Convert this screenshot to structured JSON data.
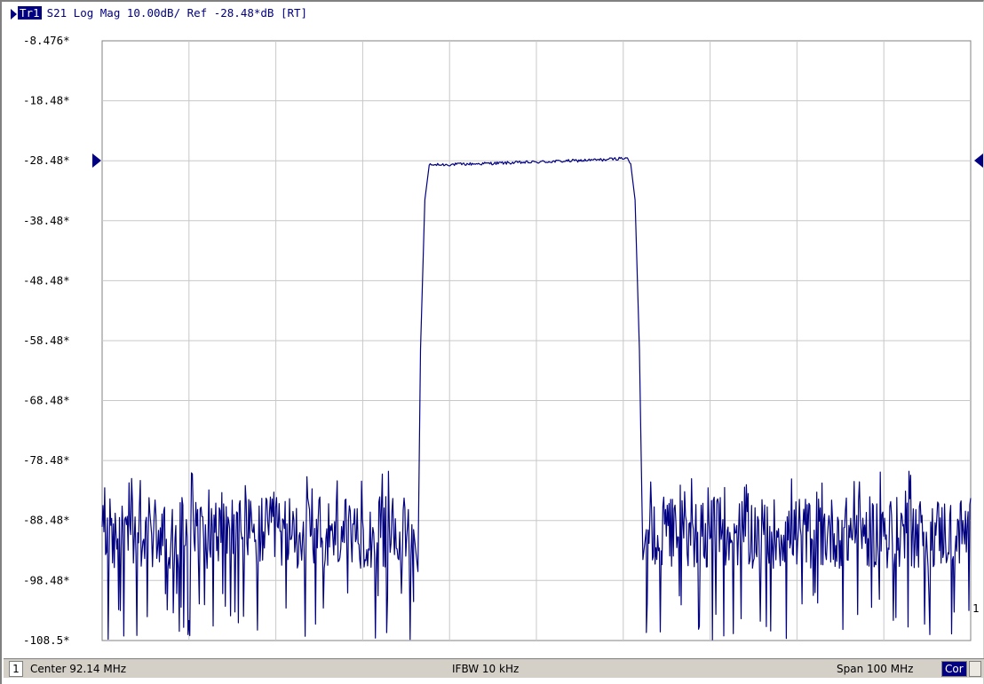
{
  "trace_header": {
    "badge": "Tr1",
    "text": "S21 Log Mag 10.00dB/ Ref -28.48*dB [RT]"
  },
  "colors": {
    "trace": "#000080",
    "grid": "#c8c8c8",
    "frame": "#808080",
    "statusbar": "#d4d0c8"
  },
  "chart_data": {
    "type": "line",
    "title": "S21 Log Mag 10.00dB/ Ref -28.48*dB [RT]",
    "xlabel": "",
    "ylabel": "",
    "x_units": "MHz",
    "center_mhz": 92.14,
    "span_mhz": 100,
    "xlim": [
      42.14,
      142.14
    ],
    "ylim": [
      -108.5,
      -8.476
    ],
    "grid": true,
    "ytick_labels": [
      "-8.476*",
      "-18.48*",
      "-28.48*",
      "-38.48*",
      "-48.48*",
      "-58.48*",
      "-68.48*",
      "-78.48*",
      "-88.48*",
      "-98.48*",
      "-108.5*"
    ],
    "ytick_values": [
      -8.476,
      -18.48,
      -28.48,
      -38.48,
      -48.48,
      -58.48,
      -68.48,
      -78.48,
      -88.48,
      -98.48,
      -108.5
    ],
    "reference_level": -28.48,
    "series": [
      {
        "points": [
          [
            42.14,
            -91.0
          ],
          [
            52.14,
            -90.0
          ],
          [
            62.14,
            -89.5
          ],
          [
            72.14,
            -90.0
          ],
          [
            78.0,
            -90.0
          ],
          [
            78.5,
            -97.0
          ],
          [
            78.8,
            -60.0
          ],
          [
            79.3,
            -35.0
          ],
          [
            79.8,
            -29.2
          ],
          [
            85.0,
            -29.0
          ],
          [
            92.14,
            -28.7
          ],
          [
            100.0,
            -28.3
          ],
          [
            102.5,
            -28.0
          ],
          [
            103.0,
            -29.0
          ],
          [
            103.5,
            -35.0
          ],
          [
            104.0,
            -60.0
          ],
          [
            104.4,
            -95.0
          ],
          [
            104.8,
            -90.0
          ],
          [
            112.14,
            -90.0
          ],
          [
            122.14,
            -91.0
          ],
          [
            132.14,
            -91.0
          ],
          [
            142.14,
            -92.0
          ]
        ]
      }
    ],
    "noise_floor": {
      "left_range_mhz": [
        42.14,
        78.0
      ],
      "right_range_mhz": [
        104.8,
        142.14
      ],
      "mean_db": -90.5,
      "min_db": -108.5,
      "max_db": -80.0
    },
    "marker_label": "1"
  },
  "statusbar": {
    "channel": "1",
    "center": "Center 92.14 MHz",
    "ifbw": "IFBW 10 kHz",
    "span": "Span 100 MHz",
    "cor": "Cor"
  }
}
